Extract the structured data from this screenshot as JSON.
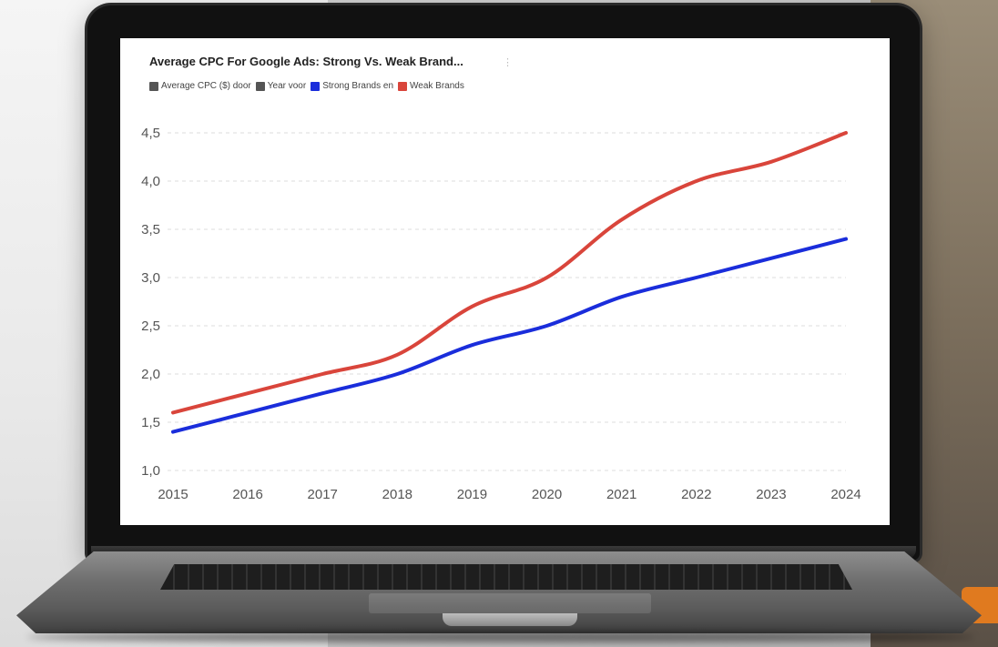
{
  "chart_data": {
    "type": "line",
    "title": "Average CPC For Google Ads: Strong Vs. Weak Brand...",
    "legend": [
      {
        "label": "Average CPC ($) door",
        "color": "#555555"
      },
      {
        "label": "Year voor",
        "color": "#555555"
      },
      {
        "label": "Strong Brands en",
        "color": "#1a2ddb"
      },
      {
        "label": "Weak Brands",
        "color": "#d9453b"
      }
    ],
    "x": [
      "2015",
      "2016",
      "2017",
      "2018",
      "2019",
      "2020",
      "2021",
      "2022",
      "2023",
      "2024"
    ],
    "series": [
      {
        "name": "Strong Brands",
        "color": "#1a2ddb",
        "values": [
          1.4,
          1.6,
          1.8,
          2.0,
          2.3,
          2.5,
          2.8,
          3.0,
          3.2,
          3.4
        ]
      },
      {
        "name": "Weak Brands",
        "color": "#d9453b",
        "values": [
          1.6,
          1.8,
          2.0,
          2.2,
          2.7,
          3.0,
          3.6,
          4.0,
          4.2,
          4.5
        ]
      }
    ],
    "ylim": [
      1.0,
      4.5
    ],
    "yticks": [
      "1,0",
      "1,5",
      "2,0",
      "2,5",
      "3,0",
      "3,5",
      "4,0",
      "4,5"
    ],
    "grid": true,
    "legend_position": "top-left"
  }
}
